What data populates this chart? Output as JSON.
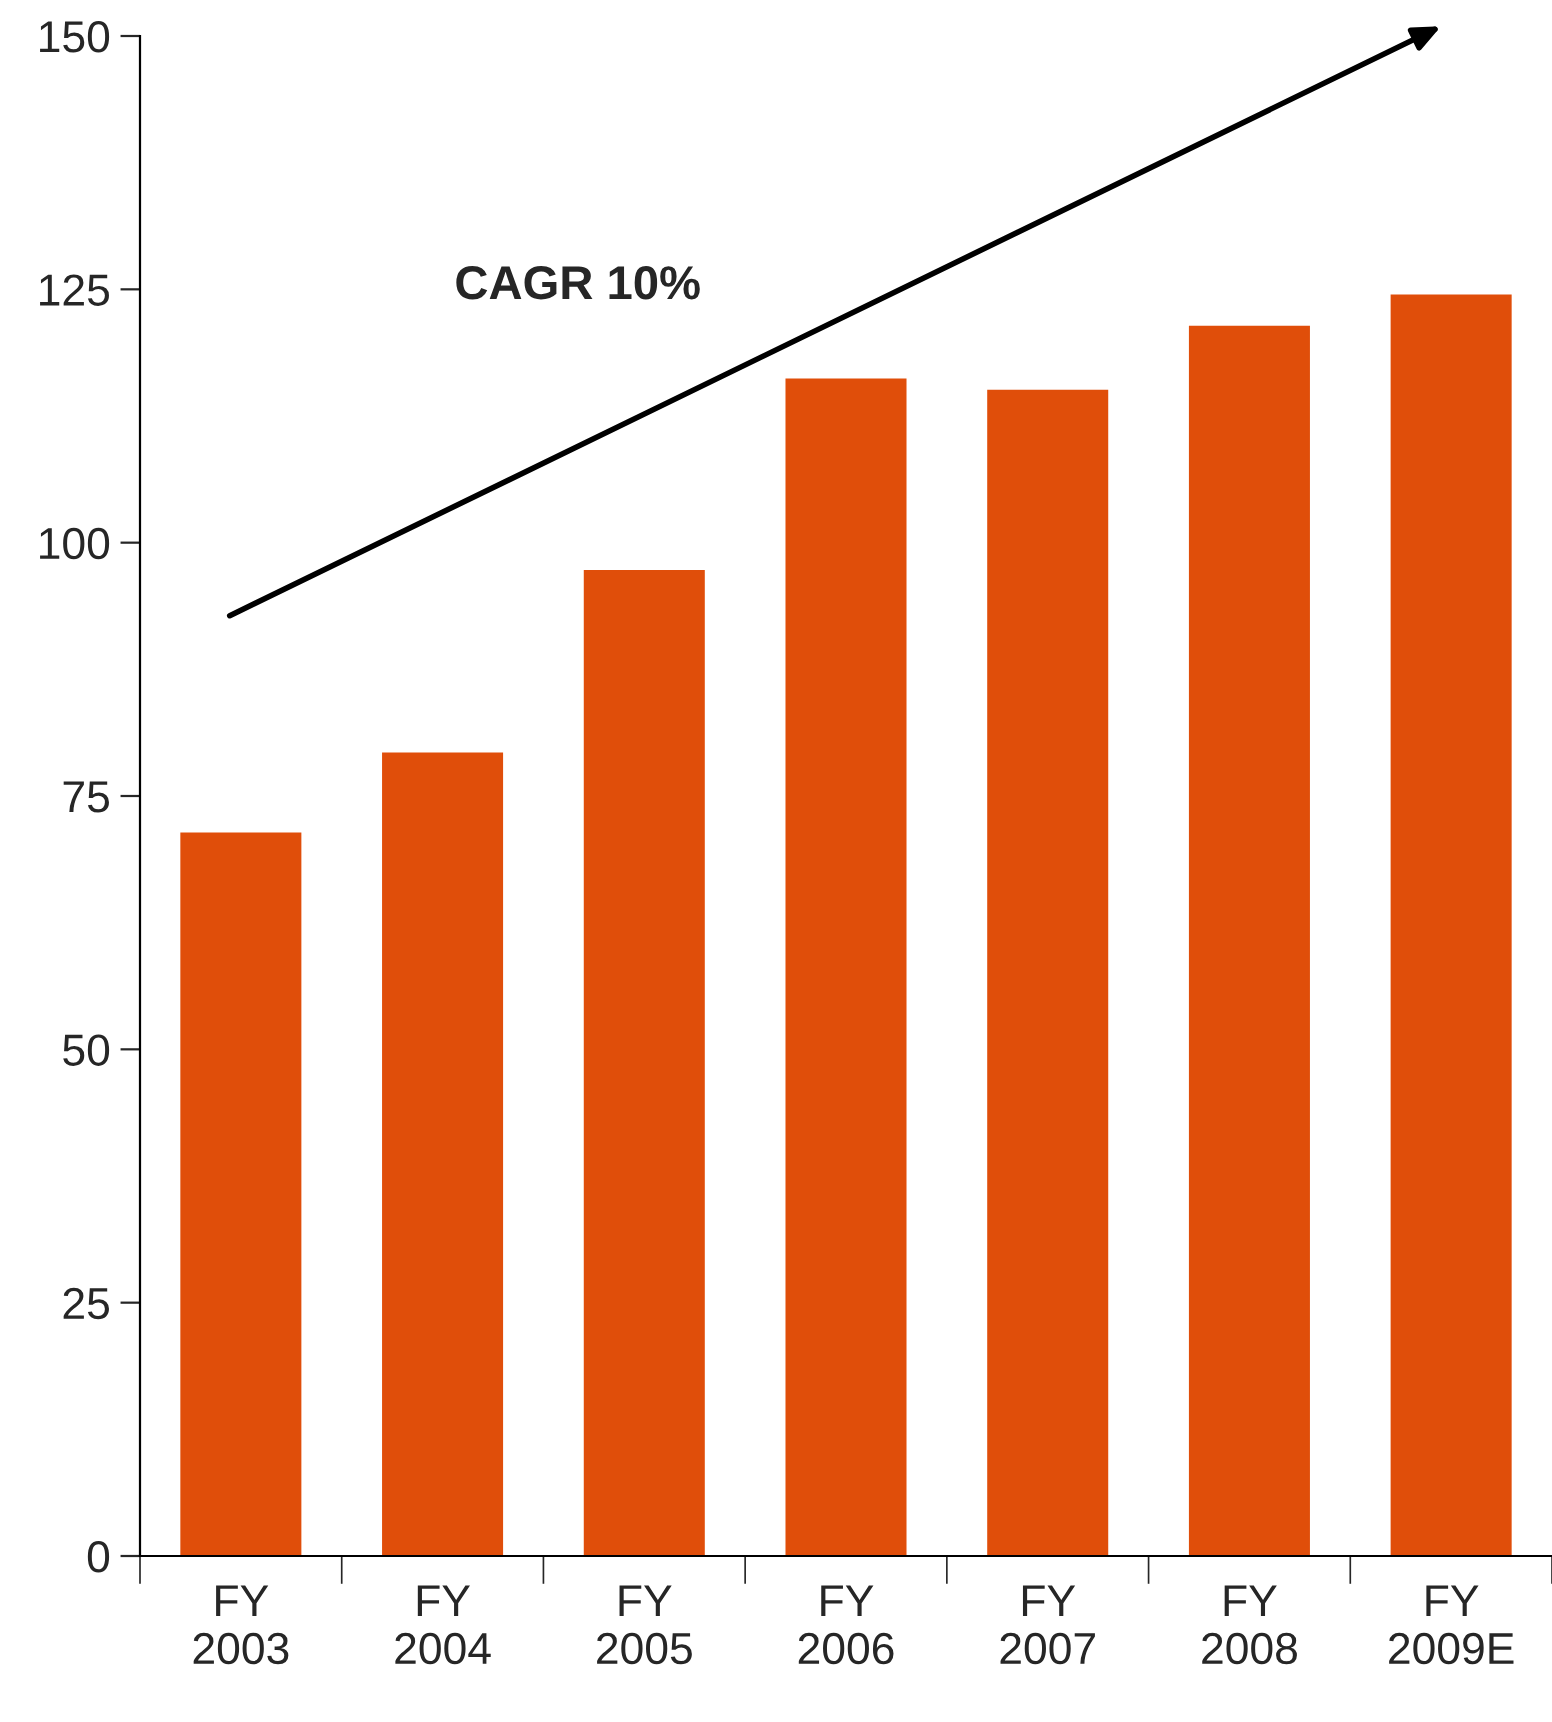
{
  "chart_data": {
    "type": "bar",
    "categories": [
      "FY\n2003",
      "FY\n2004",
      "FY\n2005",
      "FY\n2006",
      "FY\n2007",
      "FY\n2008",
      "FY\n2009E"
    ],
    "values": [
      71.4,
      79.3,
      97.3,
      116.2,
      115.1,
      121.4,
      124.5
    ],
    "color": "#e04e0a",
    "ylim": [
      0,
      150
    ],
    "yticks": [
      0,
      25,
      50,
      75,
      100,
      125,
      150
    ],
    "annotations": [
      "CAGR 10%"
    ],
    "grid": false,
    "legend": false
  }
}
